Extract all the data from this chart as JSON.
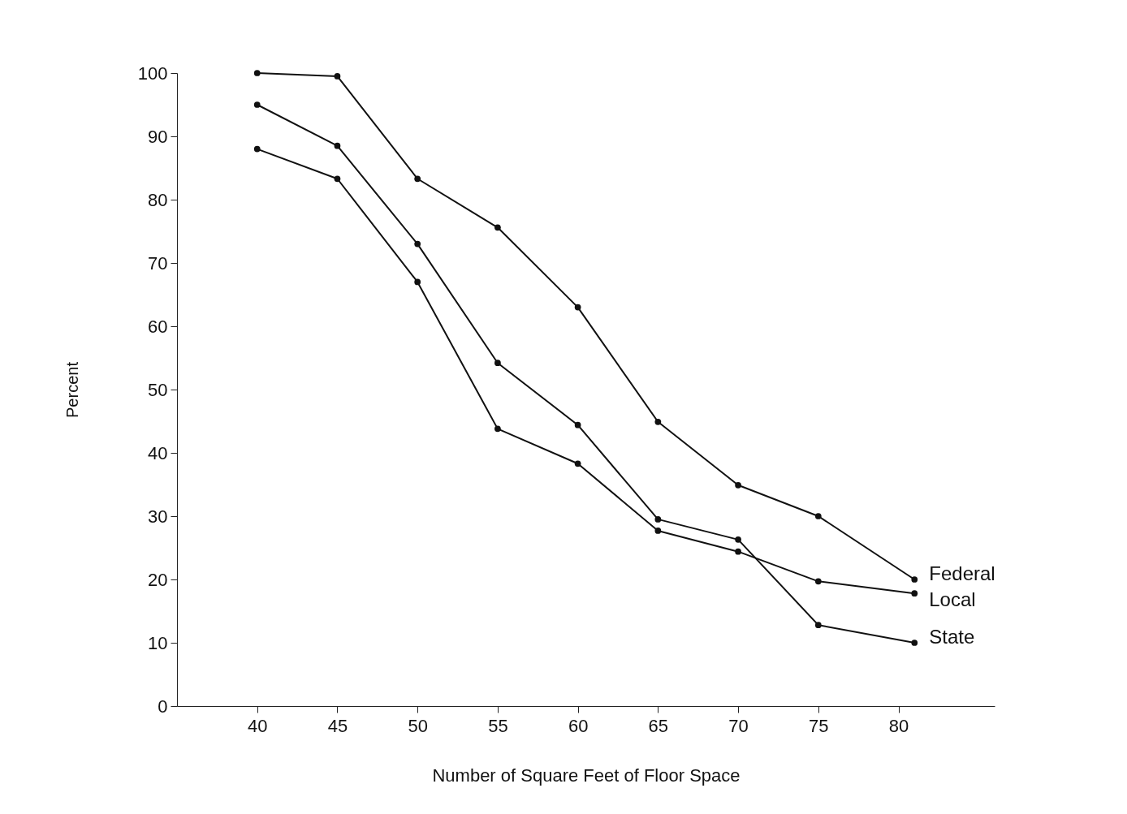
{
  "chart_data": {
    "type": "line",
    "xlabel": "Number of Square Feet of Floor Space",
    "ylabel": "Percent",
    "x": [
      40,
      45,
      50,
      55,
      60,
      65,
      70,
      75,
      81
    ],
    "series": [
      {
        "name": "Federal",
        "color": "#111111",
        "values": [
          100,
          99.5,
          83.3,
          75.6,
          63,
          44.9,
          34.9,
          30,
          20
        ]
      },
      {
        "name": "Local",
        "color": "#111111",
        "values": [
          88,
          83.3,
          67,
          43.8,
          38.3,
          27.7,
          24.4,
          19.7,
          17.8
        ]
      },
      {
        "name": "State",
        "color": "#111111",
        "values": [
          95,
          88.5,
          73,
          54.2,
          44.4,
          29.5,
          26.3,
          12.8,
          10
        ]
      }
    ],
    "xlim": [
      35,
      86
    ],
    "xticks": [
      40,
      45,
      50,
      55,
      60,
      65,
      70,
      75,
      80
    ],
    "ylim": [
      0,
      100
    ],
    "yticks": [
      0,
      10,
      20,
      30,
      40,
      50,
      60,
      70,
      80,
      90,
      100
    ],
    "grid": false,
    "marker": "circle",
    "line_style": "solid"
  }
}
